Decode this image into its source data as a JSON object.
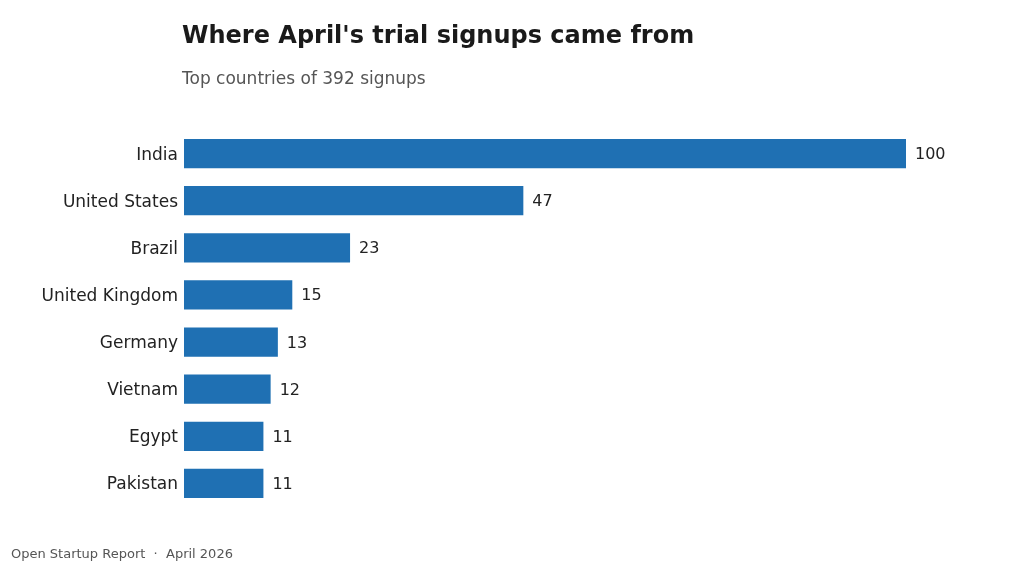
{
  "chart_data": {
    "type": "bar",
    "orientation": "horizontal",
    "title": "Where April's trial signups came from",
    "subtitle": "Top countries of 392 signups",
    "categories": [
      "India",
      "United States",
      "Brazil",
      "United Kingdom",
      "Germany",
      "Vietnam",
      "Egypt",
      "Pakistan"
    ],
    "values": [
      100,
      47,
      23,
      15,
      13,
      12,
      11,
      11
    ],
    "color": "#1f70b3",
    "data_labels": true,
    "grid": false,
    "annotations": [
      "Open Startup Report  ·  April 2026"
    ]
  }
}
